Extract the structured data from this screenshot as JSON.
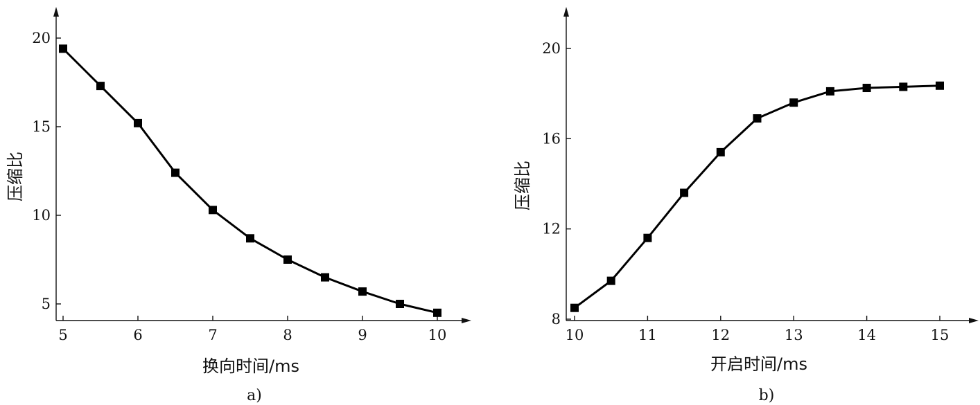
{
  "chart_data": [
    {
      "type": "line",
      "caption": "a)",
      "xlabel": "换向时间/ms",
      "ylabel": "压缩比",
      "xlim": [
        5,
        10
      ],
      "ylim": [
        5,
        20
      ],
      "xticks": [
        "5",
        "6",
        "7",
        "8",
        "9",
        "10"
      ],
      "yticks": [
        "5",
        "10",
        "15",
        "20"
      ],
      "x": [
        5,
        5.5,
        6,
        6.5,
        7,
        7.5,
        8,
        8.5,
        9,
        9.5,
        10
      ],
      "series": [
        {
          "values": [
            19.4,
            17.3,
            15.2,
            12.4,
            10.3,
            8.7,
            7.5,
            6.5,
            5.7,
            5.0,
            4.5
          ]
        }
      ],
      "grid": false,
      "marker": "square"
    },
    {
      "type": "line",
      "caption": "b)",
      "xlabel": "开启时间/ms",
      "ylabel": "压缩比",
      "xlim": [
        10,
        15
      ],
      "ylim": [
        8,
        20
      ],
      "xticks": [
        "10",
        "11",
        "12",
        "13",
        "14",
        "15"
      ],
      "yticks": [
        "8",
        "12",
        "16",
        "20"
      ],
      "x": [
        10,
        10.5,
        11,
        11.5,
        12,
        12.5,
        13,
        13.5,
        14,
        14.5,
        15
      ],
      "series": [
        {
          "values": [
            8.5,
            9.7,
            11.6,
            13.6,
            15.4,
            16.9,
            17.6,
            18.1,
            18.25,
            18.3,
            18.35
          ]
        }
      ],
      "grid": false,
      "marker": "square"
    }
  ]
}
